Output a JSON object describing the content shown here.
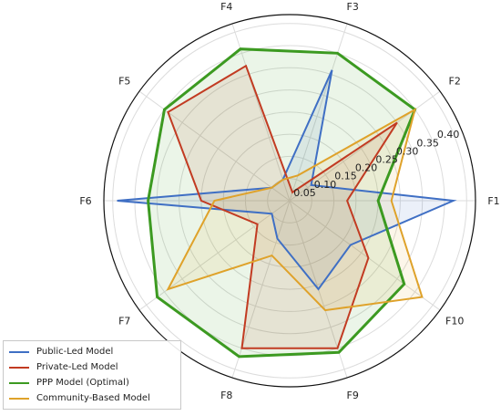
{
  "chart_data": {
    "type": "radar",
    "title": "",
    "axes": [
      "F1",
      "F2",
      "F3",
      "F4",
      "F5",
      "F6",
      "F7",
      "F8",
      "F9",
      "F10"
    ],
    "radial_ticks": [
      "0.05",
      "0.10",
      "0.15",
      "0.20",
      "0.25",
      "0.30",
      "0.35",
      "0.40"
    ],
    "rlim": [
      0,
      0.42
    ],
    "grid": true,
    "legend_position": "bottom-left",
    "series": [
      {
        "name": "Public-Led Model",
        "color": "#3f6fc4",
        "values": [
          0.37,
          0.06,
          0.31,
          0.05,
          0.05,
          0.39,
          0.05,
          0.09,
          0.21,
          0.17
        ]
      },
      {
        "name": "Private-Led Model",
        "color": "#c23b22",
        "values": [
          0.13,
          0.3,
          0.02,
          0.32,
          0.34,
          0.2,
          0.09,
          0.35,
          0.35,
          0.22
        ]
      },
      {
        "name": "PPP Model (Optimal)",
        "color": "#3c9a21",
        "values": [
          0.2,
          0.35,
          0.35,
          0.36,
          0.35,
          0.32,
          0.37,
          0.37,
          0.36,
          0.32
        ]
      },
      {
        "name": "Community-Based Model",
        "color": "#dfa22a",
        "values": [
          0.23,
          0.35,
          0.06,
          0.05,
          0.05,
          0.17,
          0.34,
          0.13,
          0.26,
          0.37
        ]
      }
    ]
  }
}
